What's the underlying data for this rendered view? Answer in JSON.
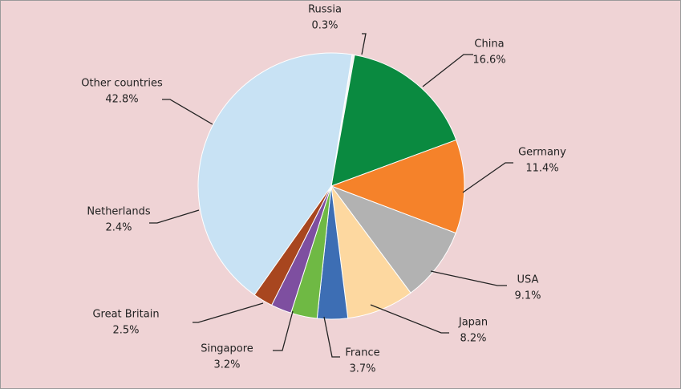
{
  "chart_data": {
    "type": "pie",
    "categories": [
      "Russia",
      "China",
      "Germany",
      "USA",
      "Japan",
      "France",
      "Singapore",
      "Great Britain",
      "Netherlands",
      "Other countries"
    ],
    "values": [
      0.3,
      16.6,
      11.4,
      9.1,
      8.2,
      3.7,
      3.2,
      2.5,
      2.4,
      42.8
    ],
    "value_labels": [
      "0.3%",
      "16.6%",
      "11.4%",
      "9.1%",
      "8.2%",
      "3.7%",
      "3.2%",
      "2.5%",
      "2.4%",
      "42.8%"
    ],
    "colors": [
      "#f4f4f4",
      "#0a8a40",
      "#f5822a",
      "#b2b2b2",
      "#fdd8a0",
      "#3d6eb4",
      "#6fb944",
      "#7e4fa0",
      "#a8461f",
      "#c8e2f4"
    ]
  }
}
